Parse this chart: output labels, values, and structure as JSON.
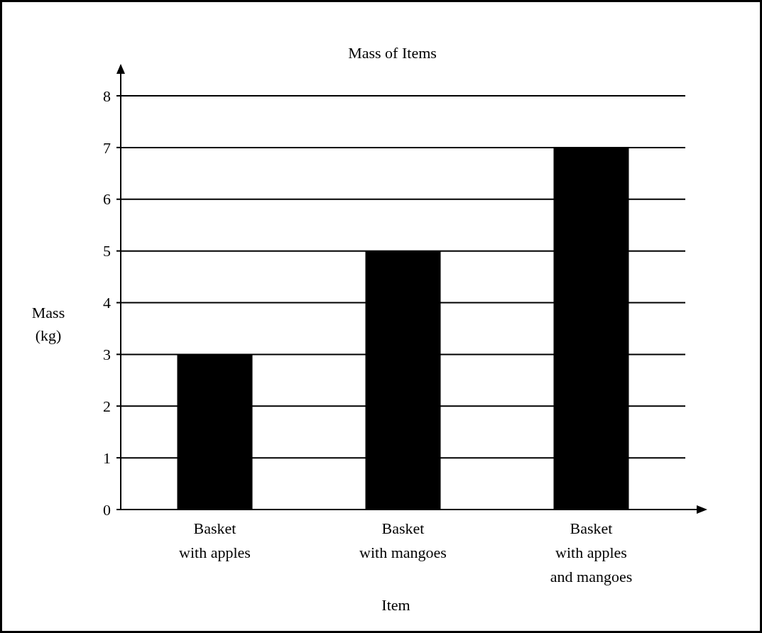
{
  "chart_data": {
    "type": "bar",
    "title": "Mass of Items",
    "xlabel": "Item",
    "ylabel": "Mass (kg)",
    "categories": [
      "Basket with apples",
      "Basket with mangoes",
      "Basket with apples and mangoes"
    ],
    "values": [
      3,
      5,
      7
    ],
    "color": "#000000",
    "ylim": [
      0,
      8
    ],
    "yticks": [
      0,
      1,
      2,
      3,
      4,
      5,
      6,
      7,
      8
    ],
    "grid": "y"
  }
}
